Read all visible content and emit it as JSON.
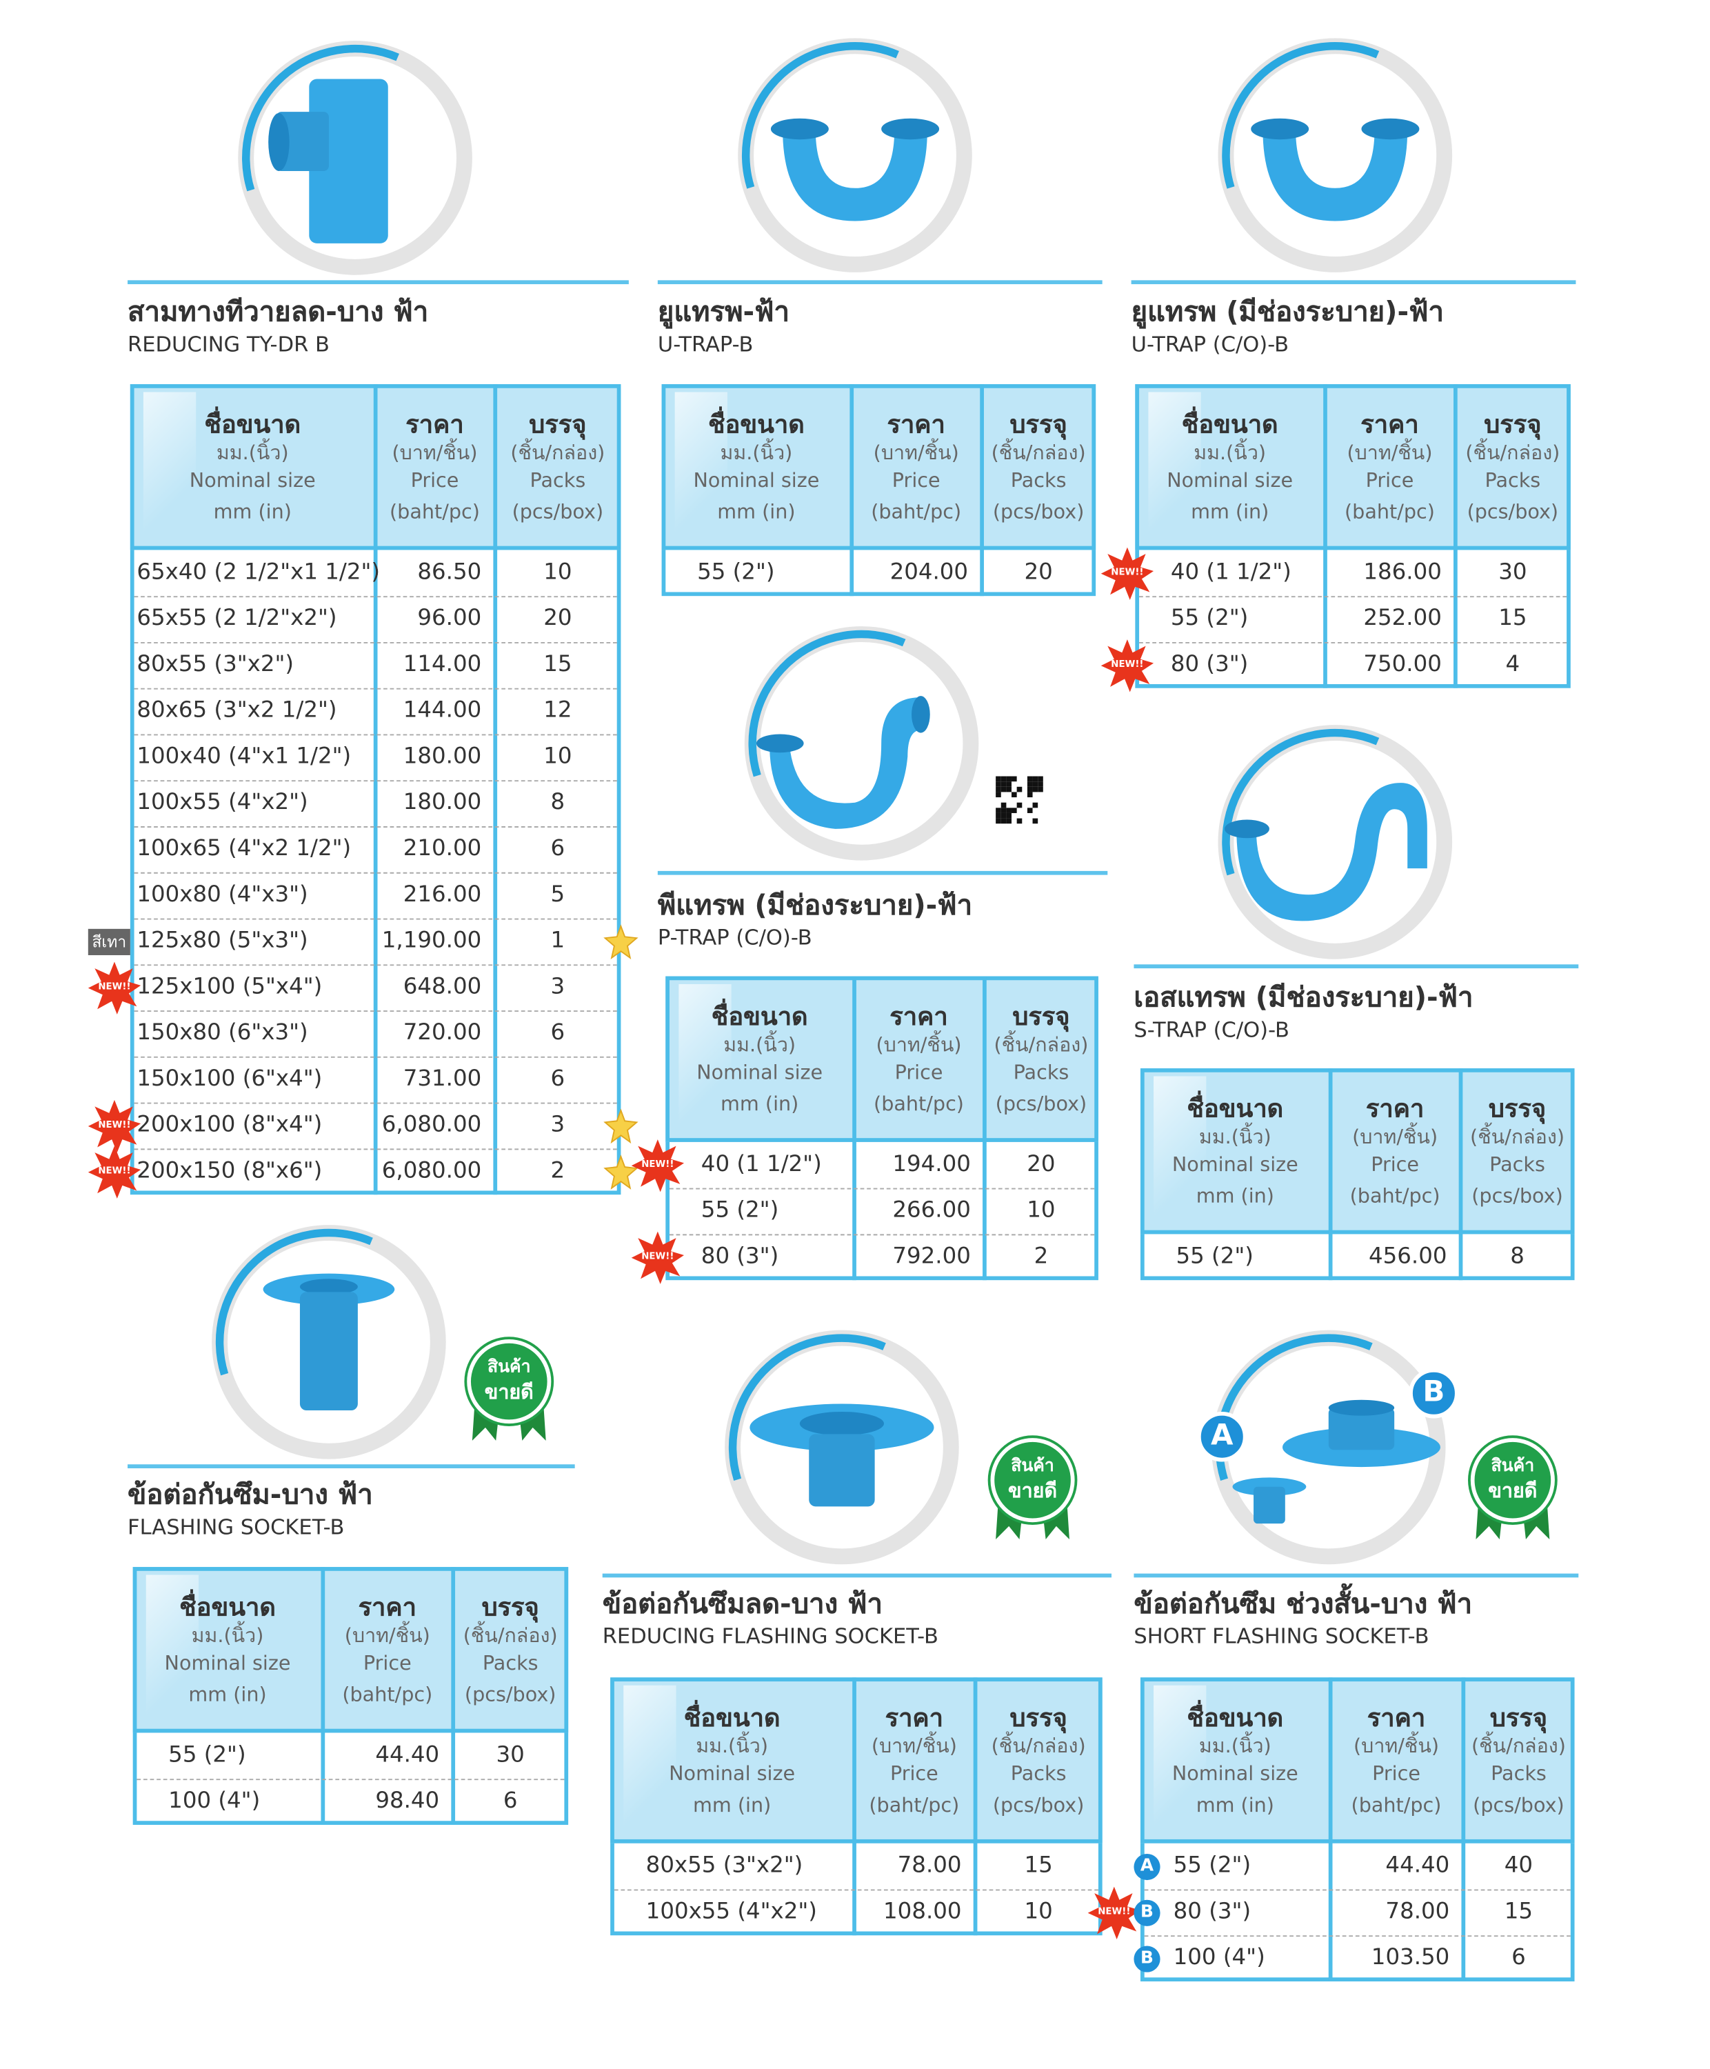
{
  "header": {
    "size_th": "ชื่อขนาด",
    "size_unit_th": "มม.(นิ้ว)",
    "size_en": "Nominal size",
    "size_unit_en": "mm (in)",
    "price_th": "ราคา",
    "price_unit_th": "(บาท/ชิ้น)",
    "price_en": "Price",
    "price_unit_en": "(baht/pc)",
    "pack_th": "บรรจุ",
    "pack_unit_th": "(ชิ้น/กล่อง)",
    "pack_en": "Packs",
    "pack_unit_en": "(pcs/box)"
  },
  "badges": {
    "new": "NEW!!",
    "grey": "สีเทา",
    "best_seller_1": "สินค้า",
    "best_seller_2": "ขายดี",
    "a": "A",
    "b": "B"
  },
  "products": [
    {
      "title_th": "สามทางทีวายลด-บาง ฟ้า",
      "title_en": "REDUCING TY-DR B",
      "rows": [
        [
          "65x40 (2 1/2\"x1 1/2\")",
          "86.50",
          10
        ],
        [
          "65x55 (2 1/2\"x2\")",
          "96.00",
          20
        ],
        [
          "80x55 (3\"x2\")",
          "114.00",
          15
        ],
        [
          "80x65 (3\"x2 1/2\")",
          "144.00",
          12
        ],
        [
          "100x40 (4\"x1 1/2\")",
          "180.00",
          10
        ],
        [
          "100x55 (4\"x2\")",
          "180.00",
          8
        ],
        [
          "100x65 (4\"x2 1/2\")",
          "210.00",
          6
        ],
        [
          "100x80 (4\"x3\")",
          "216.00",
          5
        ],
        [
          "125x80 (5\"x3\")",
          "1,190.00",
          1
        ],
        [
          "125x100 (5\"x4\")",
          "648.00",
          3
        ],
        [
          "150x80 (6\"x3\")",
          "720.00",
          6
        ],
        [
          "150x100 (6\"x4\")",
          "731.00",
          6
        ],
        [
          "200x100 (8\"x4\")",
          "6,080.00",
          3
        ],
        [
          "200x150 (8\"x6\")",
          "6,080.00",
          2
        ]
      ]
    },
    {
      "title_th": "ยูแทรพ-ฟ้า",
      "title_en": "U-TRAP-B",
      "rows": [
        [
          "55 (2\")",
          "204.00",
          20
        ]
      ]
    },
    {
      "title_th": "ยูแทรพ (มีช่องระบาย)-ฟ้า",
      "title_en": "U-TRAP (C/O)-B",
      "rows": [
        [
          "40 (1 1/2\")",
          "186.00",
          30
        ],
        [
          "55 (2\")",
          "252.00",
          15
        ],
        [
          "80 (3\")",
          "750.00",
          4
        ]
      ]
    },
    {
      "title_th": "พีแทรพ (มีช่องระบาย)-ฟ้า",
      "title_en": "P-TRAP (C/O)-B",
      "rows": [
        [
          "40 (1 1/2\")",
          "194.00",
          20
        ],
        [
          "55 (2\")",
          "266.00",
          10
        ],
        [
          "80 (3\")",
          "792.00",
          2
        ]
      ]
    },
    {
      "title_th": "เอสแทรพ (มีช่องระบาย)-ฟ้า",
      "title_en": "S-TRAP (C/O)-B",
      "rows": [
        [
          "55 (2\")",
          "456.00",
          8
        ]
      ]
    },
    {
      "title_th": "ข้อต่อกันซึม-บาง ฟ้า",
      "title_en": "FLASHING SOCKET-B",
      "rows": [
        [
          "55 (2\")",
          "44.40",
          30
        ],
        [
          "100 (4\")",
          "98.40",
          6
        ]
      ]
    },
    {
      "title_th": "ข้อต่อกันซึมลด-บาง ฟ้า",
      "title_en": "REDUCING FLASHING SOCKET-B",
      "rows": [
        [
          "80x55 (3\"x2\")",
          "78.00",
          15
        ],
        [
          "100x55 (4\"x2\")",
          "108.00",
          10
        ]
      ]
    },
    {
      "title_th": "ข้อต่อกันซึม ช่วงสั้น-บาง ฟ้า",
      "title_en": "SHORT FLASHING SOCKET-B",
      "rows": [
        [
          "55 (2\")",
          "44.40",
          40
        ],
        [
          "80 (3\")",
          "78.00",
          15
        ],
        [
          "100 (4\")",
          "103.50",
          6
        ]
      ]
    }
  ]
}
